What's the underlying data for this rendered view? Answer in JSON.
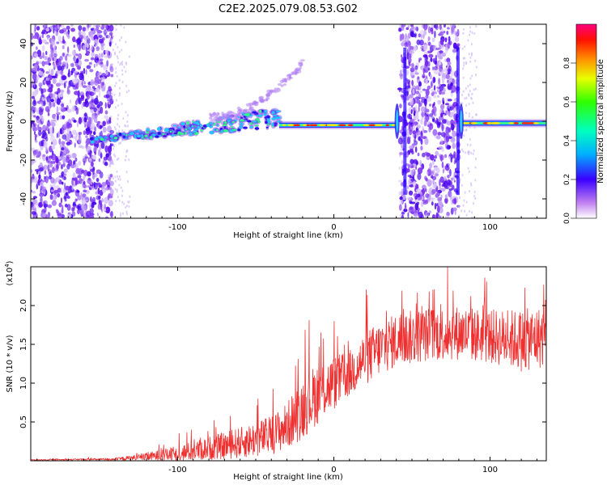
{
  "title": "C2E2.2025.079.08.53.G02",
  "chart_data": [
    {
      "type": "heatmap",
      "xlabel": "Height of straight line (km)",
      "ylabel": "Frequency (Hz)",
      "xlim": [
        -194,
        136
      ],
      "ylim": [
        -50,
        50
      ],
      "xticks": [
        -100,
        0,
        100
      ],
      "yticks": [
        -40,
        -20,
        0,
        20,
        40
      ],
      "colorbar": {
        "label": "Normalized spectral amplitude",
        "range": [
          0,
          1
        ],
        "ticks": [
          "0.0",
          "0.2",
          "0.4",
          "0.6",
          "0.8"
        ]
      },
      "features": [
        {
          "desc": "broadband noise",
          "x": [
            -194,
            -142
          ],
          "y": [
            -50,
            50
          ]
        },
        {
          "desc": "signal rising",
          "x": [
            -155,
            -35
          ],
          "y": [
            -10,
            2
          ]
        },
        {
          "desc": "faint upper branch",
          "x": [
            -80,
            -20
          ],
          "y": [
            2,
            30
          ]
        },
        {
          "desc": "steady tone",
          "x": [
            -35,
            40
          ],
          "y": [
            -2,
            -2
          ]
        },
        {
          "desc": "broadband noise",
          "x": [
            42,
            80
          ],
          "y": [
            -50,
            50
          ]
        },
        {
          "desc": "steady tone",
          "x": [
            82,
            136
          ],
          "y": [
            -1,
            -1
          ]
        }
      ]
    },
    {
      "type": "line",
      "xlabel": "Height of straight line (km)",
      "ylabel": "SNR (10 * v/v)",
      "scale_label": "(x10^4)",
      "xlim": [
        -194,
        136
      ],
      "ylim": [
        0,
        2.5
      ],
      "xticks": [
        -100,
        0,
        100
      ],
      "yticks": [
        "0.5",
        "1.0",
        "1.5",
        "2.0"
      ],
      "series": [
        {
          "color": "#ee3030",
          "envelope": {
            "x": [
              -194,
              -140,
              -120,
              -100,
              -80,
              -60,
              -40,
              -30,
              -20,
              -10,
              0,
              10,
              20,
              30,
              40,
              60,
              80,
              100,
              120,
              136
            ],
            "mean": [
              0.01,
              0.02,
              0.05,
              0.09,
              0.16,
              0.23,
              0.33,
              0.45,
              0.68,
              0.88,
              1.0,
              1.12,
              1.32,
              1.45,
              1.55,
              1.63,
              1.65,
              1.6,
              1.55,
              1.6
            ],
            "spread": [
              0.005,
              0.015,
              0.05,
              0.1,
              0.15,
              0.2,
              0.25,
              0.3,
              0.4,
              0.4,
              0.35,
              0.3,
              0.35,
              0.35,
              0.35,
              0.35,
              0.35,
              0.35,
              0.4,
              0.4
            ]
          }
        }
      ]
    }
  ]
}
